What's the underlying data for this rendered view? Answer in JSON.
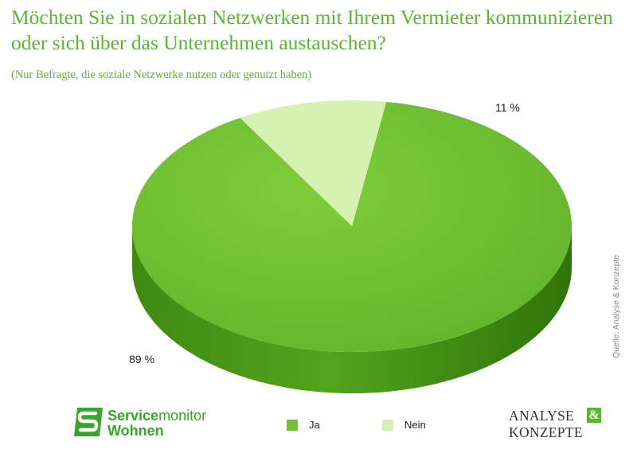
{
  "title": "Möchten Sie in sozialen Netzwerken mit Ihrem Vermieter kommunizieren oder sich über das Unternehmen austauschen?",
  "subtitle": "(Nur Befragte, die soziale Netzwerke nutzen oder genutzt haben)",
  "source": "Quelle: Analyse & Konzepte",
  "chart_data": {
    "type": "pie",
    "style": "3d",
    "categories": [
      "Ja",
      "Nein"
    ],
    "values": [
      89,
      11
    ],
    "data_labels": [
      "89 %",
      "11 %"
    ],
    "colors": [
      "#72c235",
      "#d5f2b0"
    ],
    "legend_position": "bottom",
    "title": "Möchten Sie in sozialen Netzwerken mit Ihrem Vermieter kommunizieren oder sich über das Unternehmen austauschen?",
    "subtitle": "(Nur Befragte, die soziale Netzwerke nutzen oder genutzt haben)"
  },
  "logo_left": {
    "part1": "Service",
    "part2": "monitor",
    "line2": "Wohnen",
    "color": "#3aa52b"
  },
  "logo_right": {
    "line1": "ANALYSE",
    "amp": "&",
    "line2": "KONZEPTE",
    "accent": "#58b82c"
  }
}
